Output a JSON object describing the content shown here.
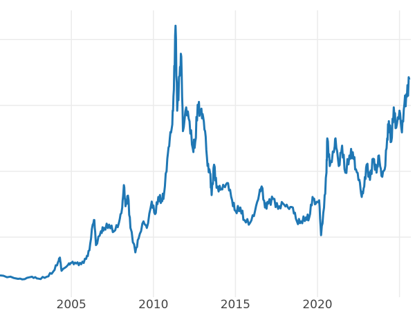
{
  "chart_data": {
    "type": "line",
    "title": "",
    "xlabel": "",
    "ylabel": "",
    "xlim": [
      2000.65,
      2025.65
    ],
    "ylim": [
      0,
      46
    ],
    "grid": true,
    "legend": "none",
    "x_ticks": [
      2005,
      2010,
      2015,
      2020,
      2025
    ],
    "x_tick_labels": [
      "2005",
      "2010",
      "2015",
      "2020",
      ""
    ],
    "y_gridlines": [
      10,
      20,
      30,
      40
    ],
    "line_color": "#1f77b4",
    "series": [
      {
        "x": [
          2000.65,
          2001.5,
          2002.0,
          2002.6,
          2003.0,
          2003.5,
          2003.9,
          2004.2,
          2004.3,
          2004.4,
          2004.8,
          2005.0,
          2005.3,
          2005.6,
          2005.9,
          2006.1,
          2006.3,
          2006.4,
          2006.5,
          2006.8,
          2007.0,
          2007.3,
          2007.6,
          2007.9,
          2008.1,
          2008.2,
          2008.3,
          2008.45,
          2008.6,
          2008.9,
          2009.1,
          2009.4,
          2009.6,
          2009.9,
          2010.1,
          2010.3,
          2010.5,
          2010.65,
          2010.85,
          2011.0,
          2011.15,
          2011.25,
          2011.35,
          2011.45,
          2011.6,
          2011.7,
          2011.8,
          2012.0,
          2012.2,
          2012.4,
          2012.55,
          2012.7,
          2012.85,
          2013.0,
          2013.15,
          2013.3,
          2013.45,
          2013.55,
          2013.7,
          2013.85,
          2014.1,
          2014.3,
          2014.55,
          2014.8,
          2015.0,
          2015.3,
          2015.55,
          2015.9,
          2016.2,
          2016.45,
          2016.6,
          2016.8,
          2017.0,
          2017.3,
          2017.6,
          2017.9,
          2018.2,
          2018.5,
          2018.75,
          2019.0,
          2019.3,
          2019.5,
          2019.7,
          2019.9,
          2020.1,
          2020.22,
          2020.4,
          2020.55,
          2020.6,
          2020.75,
          2021.0,
          2021.1,
          2021.3,
          2021.5,
          2021.7,
          2021.95,
          2022.15,
          2022.35,
          2022.55,
          2022.7,
          2022.85,
          2023.0,
          2023.2,
          2023.4,
          2023.6,
          2023.75,
          2023.9,
          2024.1,
          2024.25,
          2024.35,
          2024.5,
          2024.65,
          2024.8,
          2025.0,
          2025.15,
          2025.3,
          2025.45,
          2025.6
        ],
        "y": [
          4.2,
          3.8,
          3.6,
          4.0,
          3.7,
          4.0,
          4.8,
          6.3,
          6.9,
          4.9,
          5.8,
          6.1,
          6.0,
          5.9,
          6.7,
          8.0,
          11.9,
          12.6,
          8.8,
          10.9,
          11.4,
          11.9,
          10.9,
          12.2,
          14.5,
          17.9,
          14.7,
          16.3,
          11.4,
          7.7,
          9.8,
          12.4,
          11.4,
          15.4,
          13.5,
          16.1,
          15.6,
          16.6,
          21.9,
          25.0,
          27.1,
          32.4,
          42.1,
          29.2,
          34.5,
          37.4,
          26.1,
          29.7,
          27.6,
          23.5,
          24.5,
          30.1,
          29.2,
          28.7,
          26.1,
          20.8,
          19.8,
          16.4,
          21.0,
          17.5,
          17.2,
          17.7,
          18.2,
          15.6,
          14.0,
          14.5,
          12.6,
          12.2,
          14.0,
          16.6,
          17.7,
          14.5,
          15.1,
          15.8,
          14.3,
          15.1,
          14.5,
          14.5,
          12.4,
          12.4,
          13.0,
          13.0,
          16.1,
          15.1,
          15.6,
          10.3,
          14.5,
          19.8,
          25.0,
          20.8,
          22.9,
          25.0,
          20.8,
          23.9,
          19.8,
          22.4,
          22.9,
          20.3,
          18.7,
          16.1,
          17.7,
          21.0,
          18.7,
          21.9,
          19.8,
          22.4,
          19.3,
          20.3,
          25.0,
          27.6,
          24.5,
          29.7,
          26.6,
          29.2,
          25.9,
          30.2,
          31.3,
          33.9
        ]
      }
    ]
  }
}
